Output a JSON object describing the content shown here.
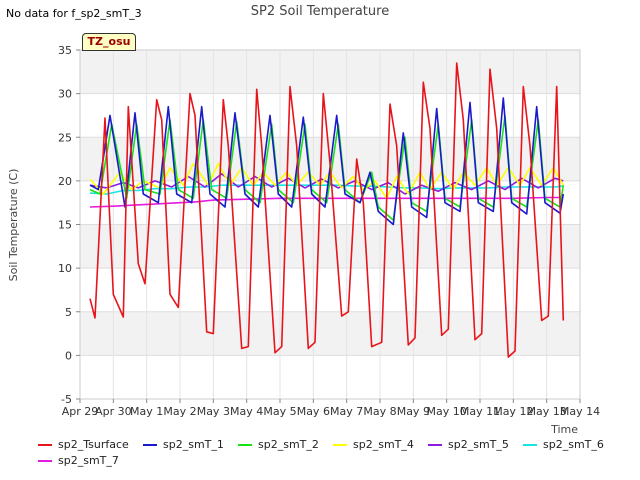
{
  "nodata_text": "No data for f_sp2_smT_3",
  "tz_label": "TZ_osu",
  "chart_data": {
    "type": "line",
    "title": "SP2 Soil Temperature",
    "xlabel": "Time",
    "ylabel": "Soil Temperature (C)",
    "ylim": [
      -5,
      35
    ],
    "yticks": [
      -5,
      0,
      5,
      10,
      15,
      20,
      25,
      30,
      35
    ],
    "xlim": [
      0,
      15
    ],
    "xticks": [
      {
        "day": 0,
        "label": "Apr 29"
      },
      {
        "day": 1,
        "label": "Apr 30"
      },
      {
        "day": 2,
        "label": "May 1"
      },
      {
        "day": 3,
        "label": "May 2"
      },
      {
        "day": 4,
        "label": "May 3"
      },
      {
        "day": 5,
        "label": "May 4"
      },
      {
        "day": 6,
        "label": "May 5"
      },
      {
        "day": 7,
        "label": "May 6"
      },
      {
        "day": 8,
        "label": "May 7"
      },
      {
        "day": 9,
        "label": "May 8"
      },
      {
        "day": 10,
        "label": "May 9"
      },
      {
        "day": 11,
        "label": "May 10"
      },
      {
        "day": 12,
        "label": "May 11"
      },
      {
        "day": 13,
        "label": "May 12"
      },
      {
        "day": 14,
        "label": "May 13"
      },
      {
        "day": 15,
        "label": "May 14"
      }
    ],
    "bands": true,
    "series": [
      {
        "name": "sp2_Tsurface",
        "color": "#e8141b",
        "x": [
          0.3,
          0.45,
          0.75,
          1.0,
          1.3,
          1.45,
          1.75,
          1.95,
          2.3,
          2.45,
          2.7,
          2.95,
          3.3,
          3.45,
          3.8,
          4.0,
          4.3,
          4.45,
          4.85,
          5.05,
          5.3,
          5.45,
          5.85,
          6.05,
          6.3,
          6.5,
          6.85,
          7.05,
          7.3,
          7.5,
          7.85,
          8.05,
          8.3,
          8.5,
          8.75,
          9.05,
          9.3,
          9.5,
          9.85,
          10.05,
          10.3,
          10.5,
          10.85,
          11.05,
          11.3,
          11.5,
          11.85,
          12.05,
          12.3,
          12.5,
          12.85,
          13.05,
          13.3,
          13.5,
          13.85,
          14.05,
          14.3,
          14.5
        ],
        "y": [
          6.5,
          4.3,
          27.2,
          7.0,
          4.4,
          28.5,
          10.5,
          8.2,
          29.3,
          27.0,
          7.0,
          5.5,
          30.0,
          27.5,
          2.7,
          2.5,
          29.3,
          24.0,
          0.8,
          1.0,
          30.5,
          24.0,
          0.3,
          1.0,
          30.8,
          24.0,
          0.8,
          1.5,
          30.0,
          22.0,
          4.5,
          5.0,
          22.5,
          17.5,
          1.0,
          1.5,
          28.8,
          24.0,
          1.2,
          2.0,
          31.3,
          26.0,
          2.3,
          3.0,
          33.5,
          27.0,
          1.8,
          2.5,
          32.8,
          26.0,
          -0.2,
          0.5,
          30.8,
          24.0,
          4.0,
          4.5,
          30.8,
          4.0
        ]
      },
      {
        "name": "sp2_smT_1",
        "color": "#1a1acd",
        "x": [
          0.3,
          0.55,
          0.9,
          1.35,
          1.65,
          1.9,
          2.35,
          2.65,
          2.9,
          3.35,
          3.65,
          3.9,
          4.35,
          4.65,
          4.95,
          5.35,
          5.7,
          5.95,
          6.35,
          6.7,
          6.95,
          7.35,
          7.7,
          7.95,
          8.4,
          8.7,
          8.95,
          9.4,
          9.7,
          9.95,
          10.4,
          10.7,
          10.95,
          11.4,
          11.7,
          11.95,
          12.4,
          12.7,
          12.95,
          13.4,
          13.7,
          13.95,
          14.4,
          14.5
        ],
        "y": [
          19.5,
          19.0,
          27.5,
          17.0,
          27.8,
          18.5,
          17.5,
          28.5,
          18.5,
          17.5,
          28.5,
          18.5,
          17.0,
          27.8,
          18.5,
          17.0,
          27.5,
          18.5,
          17.0,
          27.3,
          18.5,
          17.0,
          27.5,
          18.5,
          17.5,
          21.0,
          16.5,
          15.0,
          25.5,
          17.0,
          15.8,
          28.3,
          17.5,
          16.5,
          29.0,
          17.5,
          16.5,
          29.5,
          17.5,
          16.2,
          28.5,
          17.5,
          16.3,
          18.5
        ]
      },
      {
        "name": "sp2_smT_2",
        "color": "#19e219",
        "x": [
          0.3,
          0.6,
          0.95,
          1.4,
          1.7,
          1.95,
          2.4,
          2.7,
          2.95,
          3.4,
          3.7,
          3.95,
          4.4,
          4.7,
          4.95,
          5.4,
          5.75,
          5.95,
          6.4,
          6.75,
          6.95,
          7.4,
          7.75,
          7.95,
          8.4,
          8.75,
          8.95,
          9.4,
          9.75,
          9.95,
          10.4,
          10.75,
          10.95,
          11.4,
          11.75,
          11.95,
          12.4,
          12.75,
          12.95,
          13.4,
          13.75,
          13.95,
          14.4,
          14.5
        ],
        "y": [
          19.0,
          18.5,
          26.5,
          18.0,
          26.5,
          19.0,
          18.5,
          27.0,
          19.0,
          18.0,
          27.0,
          19.0,
          18.0,
          26.8,
          19.0,
          17.5,
          26.5,
          19.0,
          17.5,
          26.5,
          19.0,
          17.5,
          26.5,
          19.0,
          17.5,
          21.0,
          17.0,
          15.5,
          25.0,
          17.5,
          16.5,
          26.5,
          18.0,
          17.0,
          27.0,
          18.0,
          17.0,
          27.5,
          18.0,
          17.0,
          27.0,
          18.0,
          17.0,
          19.5
        ]
      },
      {
        "name": "sp2_smT_4",
        "color": "#ffff00",
        "x": [
          0.3,
          0.7,
          1.2,
          1.55,
          1.9,
          2.4,
          2.7,
          3.1,
          3.4,
          3.85,
          4.15,
          4.5,
          4.85,
          5.2,
          5.5,
          5.85,
          6.2,
          6.5,
          6.85,
          7.2,
          7.5,
          7.85,
          8.2,
          8.5,
          8.85,
          9.2,
          9.5,
          9.85,
          10.2,
          10.5,
          10.85,
          11.2,
          11.5,
          11.85,
          12.2,
          12.5,
          12.85,
          13.2,
          13.5,
          13.85,
          14.2,
          14.5
        ],
        "y": [
          20.2,
          18.5,
          21.0,
          19.0,
          20.0,
          19.2,
          21.5,
          19.5,
          22.0,
          19.5,
          22.0,
          19.5,
          21.5,
          19.5,
          21.0,
          19.5,
          21.0,
          19.5,
          21.0,
          19.5,
          21.0,
          19.2,
          20.5,
          19.0,
          20.0,
          18.0,
          20.5,
          18.5,
          21.0,
          19.0,
          21.0,
          19.0,
          21.0,
          19.5,
          21.5,
          19.5,
          21.5,
          19.5,
          21.5,
          19.5,
          21.5,
          19.5
        ]
      },
      {
        "name": "sp2_smT_5",
        "color": "#8c1ce0",
        "x": [
          0.3,
          0.8,
          1.3,
          1.75,
          2.25,
          2.75,
          3.25,
          3.75,
          4.25,
          4.75,
          5.25,
          5.75,
          6.25,
          6.75,
          7.25,
          7.75,
          8.25,
          8.75,
          9.25,
          9.75,
          10.25,
          10.75,
          11.25,
          11.75,
          12.25,
          12.75,
          13.25,
          13.75,
          14.25,
          14.5
        ],
        "y": [
          19.5,
          19.2,
          19.8,
          19.2,
          20.0,
          19.3,
          20.5,
          19.3,
          20.8,
          19.3,
          20.5,
          19.3,
          20.3,
          19.2,
          20.2,
          19.2,
          20.0,
          19.0,
          19.8,
          18.5,
          19.5,
          18.8,
          19.8,
          19.0,
          20.0,
          19.0,
          20.3,
          19.2,
          20.3,
          20.0
        ]
      },
      {
        "name": "sp2_smT_6",
        "color": "#19e5e5",
        "x": [
          0.3,
          0.8,
          1.3,
          1.75,
          2.25,
          2.75,
          3.25,
          3.75,
          4.25,
          4.75,
          5.25,
          5.75,
          6.25,
          6.75,
          7.25,
          7.75,
          8.25,
          8.75,
          9.25,
          9.75,
          10.25,
          10.75,
          11.25,
          11.75,
          12.25,
          12.75,
          13.25,
          13.75,
          14.25,
          14.5
        ],
        "y": [
          18.6,
          18.5,
          18.9,
          18.9,
          19.1,
          19.1,
          19.3,
          19.3,
          19.5,
          19.5,
          19.5,
          19.5,
          19.5,
          19.5,
          19.5,
          19.5,
          19.4,
          19.4,
          19.3,
          19.2,
          19.2,
          19.1,
          19.2,
          19.2,
          19.2,
          19.3,
          19.3,
          19.3,
          19.3,
          19.4
        ]
      },
      {
        "name": "sp2_smT_7",
        "color": "#e61be0",
        "x": [
          0.3,
          1.0,
          2.0,
          3.0,
          3.5,
          4.0,
          5.0,
          6.0,
          7.0,
          8.0,
          9.0,
          10.0,
          11.0,
          12.0,
          13.0,
          14.0,
          14.5
        ],
        "y": [
          17.0,
          17.1,
          17.3,
          17.5,
          17.6,
          17.8,
          17.9,
          18.0,
          18.0,
          18.0,
          18.0,
          18.0,
          18.0,
          18.0,
          18.0,
          18.1,
          18.1
        ]
      }
    ]
  }
}
